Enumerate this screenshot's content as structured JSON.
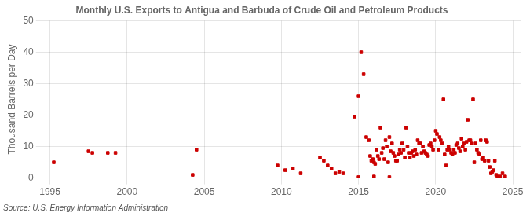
{
  "chart_data": {
    "type": "scatter",
    "title": "Monthly U.S. Exports to Antigua and Barbuda of Crude Oil and Petroleum Products",
    "ylabel": "Thousand Barrels per Day",
    "annotation": "Source: U.S. Energy Information Administration",
    "color": "#cc0000",
    "marker": "square",
    "grid": true,
    "xlim": [
      1994.5,
      2025.5
    ],
    "xticks": [
      1995,
      2000,
      2005,
      2010,
      2015,
      2020,
      2025
    ],
    "ylim": [
      0,
      50
    ],
    "yticks": [
      0,
      10,
      20,
      30,
      40,
      50
    ],
    "x": [
      1995.25,
      1997.5,
      1997.75,
      1998.75,
      1999.25,
      2004.25,
      2004.5,
      2009.75,
      2010.25,
      2010.75,
      2011.25,
      2012.5,
      2012.75,
      2013.0,
      2013.25,
      2013.5,
      2013.75,
      2014.0,
      2014.75,
      2015.0,
      2015.17,
      2015.33,
      2015.5,
      2015.67,
      2015.75,
      2015.83,
      2015.92,
      2016.0,
      2016.08,
      2016.17,
      2016.25,
      2016.33,
      2016.42,
      2016.5,
      2016.58,
      2016.67,
      2016.75,
      2016.83,
      2016.92,
      2017.0,
      2017.08,
      2017.17,
      2017.25,
      2017.33,
      2017.42,
      2017.5,
      2017.58,
      2017.67,
      2017.75,
      2017.83,
      2017.92,
      2018.0,
      2018.08,
      2018.17,
      2018.25,
      2018.33,
      2018.42,
      2018.5,
      2018.58,
      2018.67,
      2018.75,
      2018.83,
      2018.92,
      2019.0,
      2019.08,
      2019.17,
      2019.25,
      2019.33,
      2019.42,
      2019.5,
      2019.58,
      2019.67,
      2019.75,
      2019.83,
      2019.92,
      2020.0,
      2020.08,
      2020.17,
      2020.25,
      2020.33,
      2020.42,
      2020.5,
      2020.58,
      2020.67,
      2020.75,
      2020.83,
      2020.92,
      2021.0,
      2021.08,
      2021.17,
      2021.25,
      2021.33,
      2021.42,
      2021.5,
      2021.58,
      2021.67,
      2021.75,
      2021.83,
      2021.92,
      2022.0,
      2022.08,
      2022.17,
      2022.25,
      2022.33,
      2022.42,
      2022.5,
      2022.58,
      2022.67,
      2022.75,
      2022.83,
      2022.92,
      2023.0,
      2023.08,
      2023.17,
      2023.25,
      2023.33,
      2023.42,
      2023.5,
      2023.58,
      2023.67,
      2023.75,
      2023.83,
      2023.92,
      2024.0,
      2024.17,
      2024.33,
      2024.5,
      2015.0,
      2016.0,
      2017.0
    ],
    "values": [
      5.0,
      8.5,
      8.0,
      8.0,
      8.0,
      1.0,
      9.0,
      4.0,
      2.5,
      3.0,
      1.5,
      6.5,
      5.5,
      4.0,
      3.0,
      1.5,
      2.0,
      1.5,
      19.5,
      26.0,
      40.0,
      33.0,
      13.0,
      12.0,
      7.0,
      5.5,
      6.0,
      5.0,
      4.5,
      9.0,
      7.0,
      6.0,
      16.0,
      8.0,
      9.5,
      6.0,
      12.0,
      10.0,
      5.0,
      13.0,
      8.5,
      11.0,
      8.0,
      7.0,
      5.5,
      5.5,
      7.5,
      9.0,
      8.0,
      11.0,
      9.0,
      6.5,
      16.0,
      10.0,
      8.0,
      6.5,
      8.0,
      8.5,
      7.0,
      9.0,
      7.5,
      12.0,
      11.0,
      11.0,
      8.0,
      10.0,
      8.5,
      8.0,
      7.5,
      7.0,
      10.5,
      11.0,
      10.0,
      9.0,
      12.0,
      15.0,
      14.0,
      9.0,
      13.0,
      12.0,
      11.0,
      25.0,
      7.5,
      4.0,
      9.0,
      10.0,
      9.0,
      8.0,
      7.5,
      9.0,
      8.0,
      10.5,
      11.0,
      9.5,
      8.5,
      12.5,
      10.0,
      11.0,
      9.0,
      11.5,
      18.5,
      12.0,
      12.0,
      11.0,
      25.0,
      5.0,
      11.0,
      9.0,
      8.0,
      7.5,
      12.0,
      6.0,
      6.5,
      5.5,
      12.0,
      11.5,
      5.5,
      3.5,
      1.5,
      2.0,
      2.5,
      5.5,
      1.0,
      0.5,
      0.5,
      1.5,
      0.5,
      0.3,
      0.5,
      0.3
    ]
  }
}
